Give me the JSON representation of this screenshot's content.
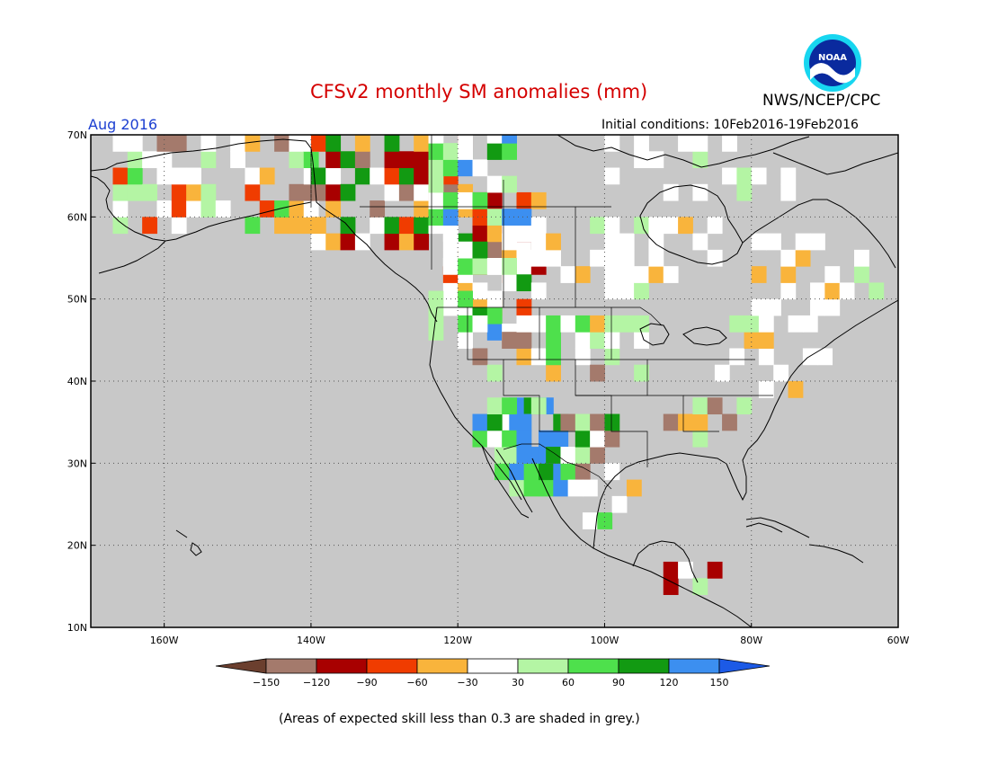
{
  "title": "CFSv2 monthly SM anomalies (mm)",
  "month": "Aug 2016",
  "initial_conditions": "Initial conditions: 10Feb2016-19Feb2016",
  "agency": "NWS/NCEP/CPC",
  "logo_text": "NOAA",
  "note": "(Areas of expected skill less than 0.3 are shaded in grey.)",
  "lat_labels": [
    "70N",
    "60N",
    "50N",
    "40N",
    "30N",
    "20N",
    "10N"
  ],
  "lon_labels": [
    "160W",
    "140W",
    "120W",
    "100W",
    "80W",
    "60W"
  ],
  "colorbar": {
    "labels": [
      "-150",
      "-120",
      "-90",
      "-60",
      "-30",
      "30",
      "60",
      "90",
      "120",
      "150"
    ],
    "colors": [
      "#6b3f2e",
      "#a47a6c",
      "#a80000",
      "#f03c00",
      "#f9b43c",
      "#ffffff",
      "#b4f5a4",
      "#4ee04c",
      "#129a12",
      "#3c8ff0",
      "#1c5ae6"
    ]
  },
  "colors": {
    "land_low_skill": "#c8c8c8",
    "ocean": "#c8c8c8",
    "title": "#d40000",
    "month": "#1c3fd1"
  }
}
